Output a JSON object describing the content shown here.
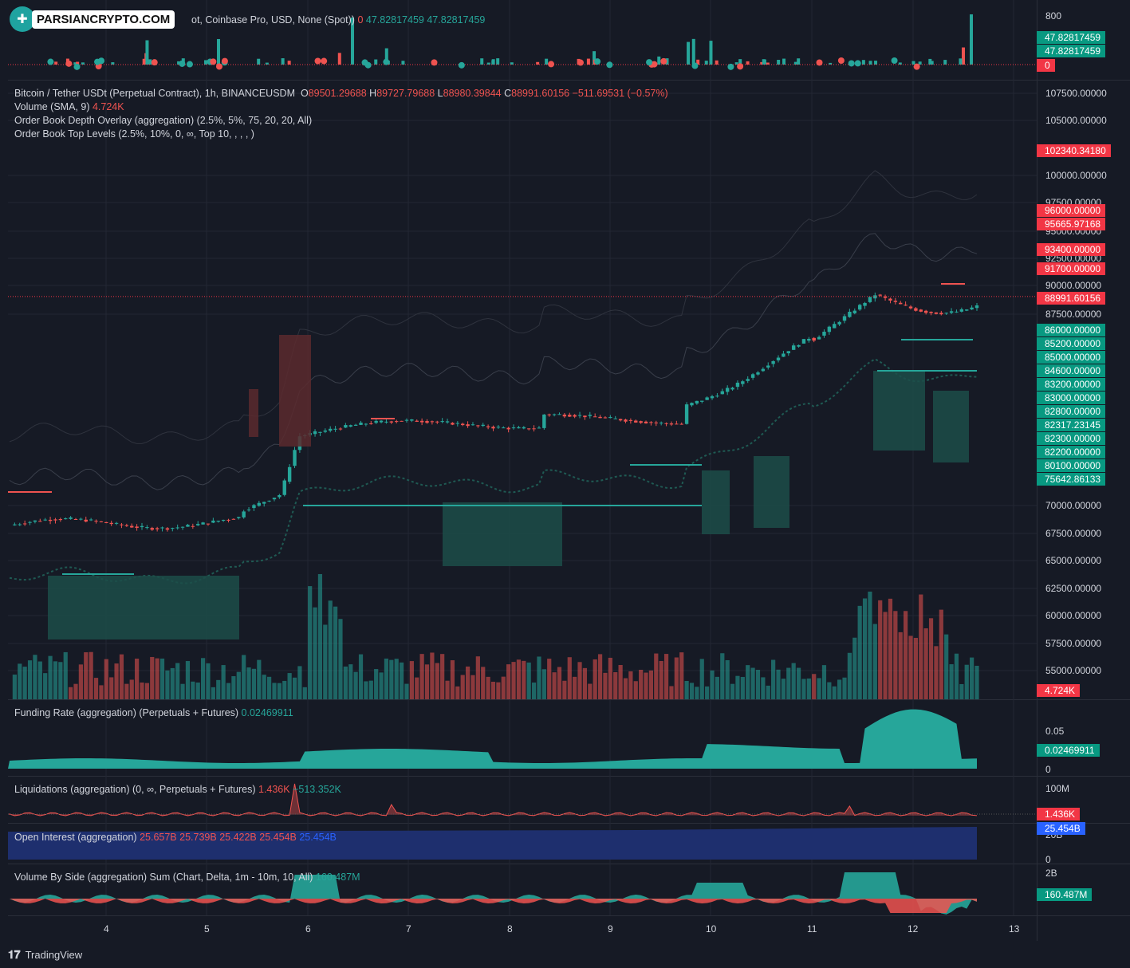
{
  "logo": {
    "brand": "PARSIANCRYPTO.COM"
  },
  "top_indicator": {
    "legend_text": "ot, Coinbase Pro, USD, None (Spot))",
    "v1": "0",
    "v2": "47.82817459",
    "v3": "47.82817459",
    "scale_top": "800",
    "labels": [
      {
        "text": "47.82817459",
        "color": "#089981"
      },
      {
        "text": "47.82817459",
        "color": "#089981"
      },
      {
        "text": "0",
        "color": "#f23645"
      }
    ]
  },
  "main": {
    "title": "Bitcoin / Tether USDt (Perpetual Contract), 1h, BINANCEUSDM",
    "o_label": "O",
    "o": "89501.29688",
    "h_label": "H",
    "h": "89727.79688",
    "l_label": "L",
    "l": "88980.39844",
    "c_label": "C",
    "c": "88991.60156",
    "change": "−511.69531 (−0.57%)",
    "volume_label": "Volume (SMA, 9)",
    "volume_value": "4.724K",
    "obd_label": "Order Book Depth Overlay (aggregation) (2.5%, 5%, 75, 20, 20, All)",
    "obt_label": "Order Book Top Levels (2.5%, 10%, 0, ∞, Top 10, , , , )",
    "price_ticks": [
      "107500.00000",
      "105000.00000",
      "100000.00000",
      "97500.00000",
      "95000.00000",
      "92500.00000",
      "90000.00000",
      "87500.00000",
      "70000.00000",
      "67500.00000",
      "65000.00000",
      "62500.00000",
      "60000.00000",
      "57500.00000",
      "55000.00000"
    ],
    "price_labels_red": [
      "102340.34180",
      "96000.00000",
      "95665.97168",
      "93400.00000",
      "91700.00000",
      "88991.60156"
    ],
    "price_labels_green": [
      "86000.00000",
      "85200.00000",
      "85000.00000",
      "84600.00000",
      "83200.00000",
      "83000.00000",
      "82800.00000",
      "82317.23145",
      "82300.00000",
      "82200.00000",
      "80100.00000",
      "75642.86133"
    ],
    "volume_badge": "4.724K",
    "last_price": 88991.60156
  },
  "funding": {
    "label": "Funding Rate (aggregation) (Perpetuals + Futures)",
    "value": "0.02469911",
    "ticks": [
      "0.05",
      "0"
    ],
    "badge": "0.02469911"
  },
  "liquidations": {
    "label": "Liquidations (aggregation) (0, ∞, Perpetuals + Futures)",
    "v1": "1.436K",
    "v2": "−513.352K",
    "ticks": [
      "100M"
    ],
    "badge": "1.436K"
  },
  "open_interest": {
    "label": "Open Interest (aggregation)",
    "o": "25.657B",
    "h": "25.739B",
    "l": "25.422B",
    "c": "25.454B",
    "v": "25.454B",
    "ticks": [
      "20B",
      "0"
    ],
    "badge": "25.454B"
  },
  "volume_by_side": {
    "label": "Volume By Side (aggregation) Sum (Chart, Delta, 1m - 10m, 10, All)",
    "value": "160.487M",
    "ticks": [
      "2B"
    ],
    "badge": "160.487M"
  },
  "x_axis": [
    "4",
    "5",
    "6",
    "7",
    "8",
    "9",
    "10",
    "11",
    "12",
    "13"
  ],
  "footer": {
    "brand": "TradingView"
  },
  "colors": {
    "up": "#26a69a",
    "down": "#ef5350",
    "bg": "#161a25",
    "oi": "#1e2f6e"
  }
}
